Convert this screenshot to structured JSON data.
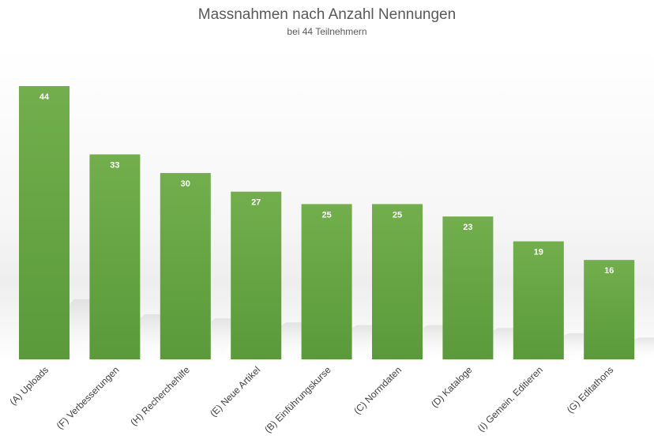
{
  "chart_data": {
    "type": "bar",
    "title": "Massnahmen nach Anzahl Nennungen",
    "subtitle": "bei 44 Teilnehmern",
    "categories": [
      "(A) Uploads",
      "(F) Verbesserungen",
      "(H) Recherchehilfe",
      "(E) Neue Artikel",
      "(B) Einführungskurse",
      "(C) Normdaten",
      "(D) Kataloge",
      "(I) Gemein. Editieren",
      "(G) Editathons"
    ],
    "values": [
      44,
      33,
      30,
      27,
      25,
      25,
      23,
      19,
      16
    ],
    "xlabel": "",
    "ylabel": "",
    "ylim": [
      0,
      44
    ],
    "grid": false,
    "legend": "none",
    "colors": {
      "bar_top": "#72ae4c",
      "bar_bottom": "#5a9a3a",
      "label": "#ffffff",
      "text": "#595959"
    }
  }
}
